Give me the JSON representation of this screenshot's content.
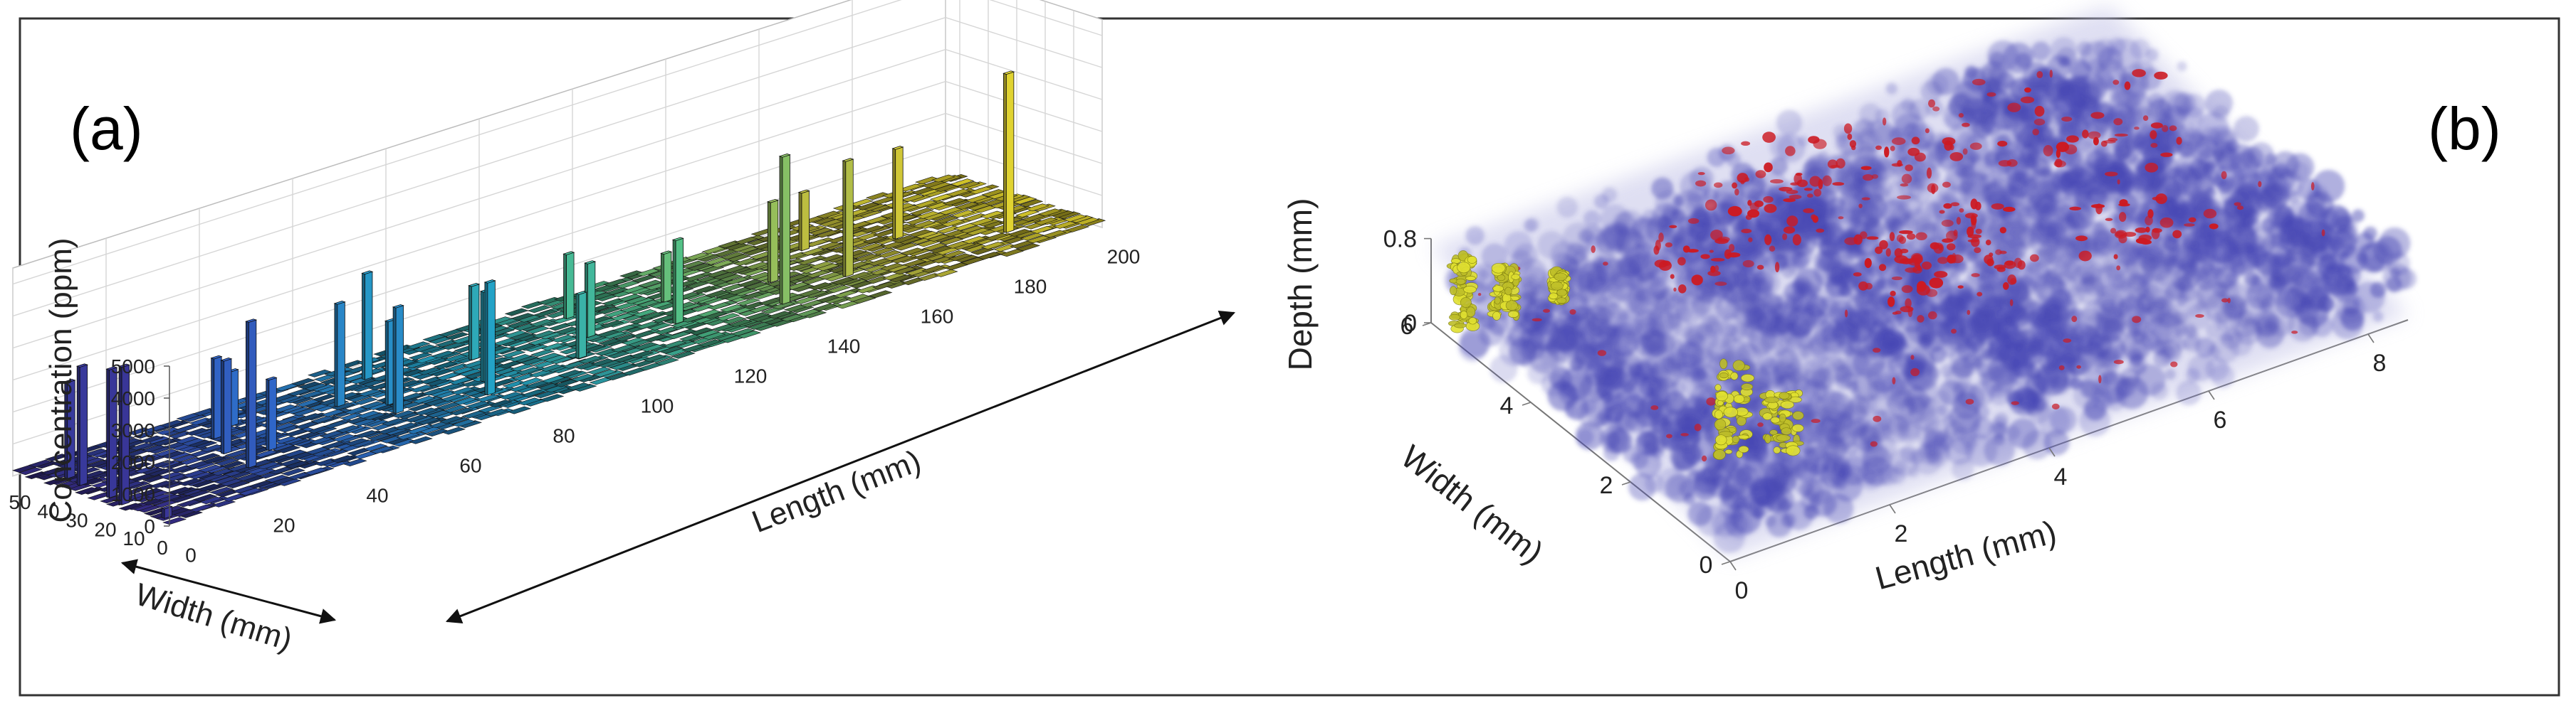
{
  "chart_data": [
    {
      "panel": "(a)",
      "type": "bar3d",
      "zlabel": "Concentration (ppm)",
      "xlabel": "Width (mm)",
      "ylabel": "Length (mm)",
      "z_ticks": [
        "0",
        "1000",
        "2000",
        "3000",
        "4000",
        "5000"
      ],
      "x_ticks": [
        "0",
        "10",
        "20",
        "30",
        "40",
        "50"
      ],
      "y_ticks": [
        "0",
        "20",
        "40",
        "60",
        "80",
        "100",
        "120",
        "140",
        "160",
        "180",
        "200"
      ],
      "zlim": [
        0,
        5000
      ],
      "xlim": [
        0,
        55
      ],
      "ylim": [
        0,
        200
      ],
      "colormap": [
        "#3b2a8c",
        "#2f66c8",
        "#23a2c6",
        "#4fc08a",
        "#c2bd3c",
        "#f2e02a"
      ],
      "background_level": 120,
      "peaks": [
        {
          "width": 5,
          "length": 2,
          "value": 300
        },
        {
          "width": 20,
          "length": 2,
          "value": 4300
        },
        {
          "width": 26,
          "length": 3,
          "value": 4000
        },
        {
          "width": 38,
          "length": 4,
          "value": 3700
        },
        {
          "width": 44,
          "length": 5,
          "value": 3000
        },
        {
          "width": 30,
          "length": 8,
          "value": 1400
        },
        {
          "width": 18,
          "length": 28,
          "value": 4550
        },
        {
          "width": 30,
          "length": 30,
          "value": 2900
        },
        {
          "width": 40,
          "length": 34,
          "value": 2500
        },
        {
          "width": 24,
          "length": 36,
          "value": 2200
        },
        {
          "width": 44,
          "length": 40,
          "value": 1700
        },
        {
          "width": 36,
          "length": 58,
          "value": 3200
        },
        {
          "width": 22,
          "length": 62,
          "value": 3300
        },
        {
          "width": 28,
          "length": 64,
          "value": 2600
        },
        {
          "width": 46,
          "length": 70,
          "value": 3300
        },
        {
          "width": 34,
          "length": 68,
          "value": 2200
        },
        {
          "width": 16,
          "length": 78,
          "value": 3500
        },
        {
          "width": 24,
          "length": 82,
          "value": 2800
        },
        {
          "width": 38,
          "length": 88,
          "value": 2300
        },
        {
          "width": 20,
          "length": 100,
          "value": 2000
        },
        {
          "width": 30,
          "length": 108,
          "value": 2300
        },
        {
          "width": 44,
          "length": 112,
          "value": 2000
        },
        {
          "width": 22,
          "length": 122,
          "value": 2600
        },
        {
          "width": 36,
          "length": 128,
          "value": 1500
        },
        {
          "width": 14,
          "length": 140,
          "value": 4600
        },
        {
          "width": 28,
          "length": 146,
          "value": 2500
        },
        {
          "width": 18,
          "length": 156,
          "value": 3600
        },
        {
          "width": 40,
          "length": 160,
          "value": 1800
        },
        {
          "width": 30,
          "length": 174,
          "value": 2800
        },
        {
          "width": 14,
          "length": 188,
          "value": 4950
        }
      ]
    },
    {
      "panel": "(b)",
      "type": "volume3d",
      "zlabel": "Depth (mm)",
      "xlabel": "Width (mm)",
      "ylabel": "Length (mm)",
      "z_ticks": [
        "0",
        "0.8"
      ],
      "x_ticks": [
        "0",
        "2",
        "4",
        "6"
      ],
      "y_ticks": [
        "0",
        "2",
        "4",
        "6",
        "8"
      ],
      "zlim": [
        0,
        0.8
      ],
      "xlim": [
        0,
        6
      ],
      "ylim": [
        0,
        8.5
      ],
      "colors": {
        "matrix": "#4848b4",
        "particles": "#cc1a22",
        "columns": "#e0e030"
      }
    }
  ]
}
